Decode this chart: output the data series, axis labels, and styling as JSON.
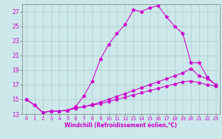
{
  "xlabel": "Windchill (Refroidissement éolien,°C)",
  "bg_color": "#cce8ea",
  "grid_color": "#aacccc",
  "line_color": "#cc00cc",
  "xlim": [
    -0.5,
    23.5
  ],
  "ylim": [
    13,
    28
  ],
  "xticks": [
    0,
    1,
    2,
    3,
    4,
    5,
    6,
    7,
    8,
    9,
    10,
    11,
    12,
    13,
    14,
    15,
    16,
    17,
    18,
    19,
    20,
    21,
    22,
    23
  ],
  "yticks": [
    13,
    15,
    17,
    19,
    21,
    23,
    25,
    27
  ],
  "line1_x": [
    0,
    1,
    2,
    3,
    4,
    5,
    6,
    7,
    8,
    9,
    10,
    11,
    12,
    13,
    14,
    15,
    16,
    17,
    18,
    19,
    20,
    21,
    22,
    23
  ],
  "line1_y": [
    15.0,
    14.2,
    13.2,
    13.4,
    13.4,
    13.5,
    14.0,
    15.5,
    17.5,
    20.5,
    22.5,
    24.0,
    25.2,
    27.2,
    27.0,
    27.5,
    27.8,
    26.3,
    25.0,
    24.0,
    20.0,
    20.0,
    18.0,
    17.0
  ],
  "line2_x": [
    0,
    1,
    2,
    3,
    4,
    5,
    6,
    7,
    8,
    9,
    10,
    11,
    12,
    13,
    14,
    15,
    16,
    17,
    18,
    19,
    20,
    21,
    22,
    23
  ],
  "line2_y": [
    15.0,
    14.2,
    13.2,
    13.4,
    13.4,
    13.5,
    13.8,
    14.0,
    14.3,
    14.6,
    15.0,
    15.4,
    15.8,
    16.2,
    16.6,
    17.0,
    17.4,
    17.8,
    18.2,
    18.6,
    19.2,
    18.2,
    17.8,
    17.0
  ],
  "line3_x": [
    0,
    1,
    2,
    3,
    4,
    5,
    6,
    7,
    8,
    9,
    10,
    11,
    12,
    13,
    14,
    15,
    16,
    17,
    18,
    19,
    20,
    21,
    22,
    23
  ],
  "line3_y": [
    15.0,
    14.2,
    13.2,
    13.4,
    13.4,
    13.5,
    13.8,
    14.0,
    14.2,
    14.4,
    14.7,
    15.0,
    15.3,
    15.6,
    15.9,
    16.2,
    16.5,
    16.8,
    17.1,
    17.4,
    17.5,
    17.3,
    17.0,
    16.8
  ]
}
